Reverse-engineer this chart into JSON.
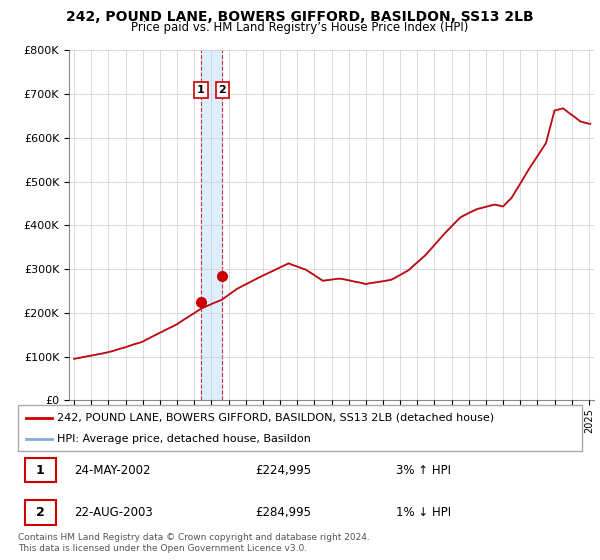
{
  "title": "242, POUND LANE, BOWERS GIFFORD, BASILDON, SS13 2LB",
  "subtitle": "Price paid vs. HM Land Registry’s House Price Index (HPI)",
  "ylim": [
    0,
    800000
  ],
  "yticks": [
    0,
    100000,
    200000,
    300000,
    400000,
    500000,
    600000,
    700000,
    800000
  ],
  "ytick_labels": [
    "£0",
    "£100K",
    "£200K",
    "£300K",
    "£400K",
    "£500K",
    "£600K",
    "£700K",
    "£800K"
  ],
  "sale1_year": 2002.39,
  "sale1_price": 224995,
  "sale1_label": "1",
  "sale2_year": 2003.64,
  "sale2_price": 284995,
  "sale2_label": "2",
  "line_color_property": "#cc0000",
  "line_color_hpi": "#88aadd",
  "shade_color": "#ddeeff",
  "grid_color": "#cccccc",
  "legend_label_property": "242, POUND LANE, BOWERS GIFFORD, BASILDON, SS13 2LB (detached house)",
  "legend_label_hpi": "HPI: Average price, detached house, Basildon",
  "table_row1": [
    "1",
    "24-MAY-2002",
    "£224,995",
    "3% ↑ HPI"
  ],
  "table_row2": [
    "2",
    "22-AUG-2003",
    "£284,995",
    "1% ↓ HPI"
  ],
  "footer": "Contains HM Land Registry data © Crown copyright and database right 2024.\nThis data is licensed under the Open Government Licence v3.0.",
  "xmin": 1994.7,
  "xmax": 2025.3
}
